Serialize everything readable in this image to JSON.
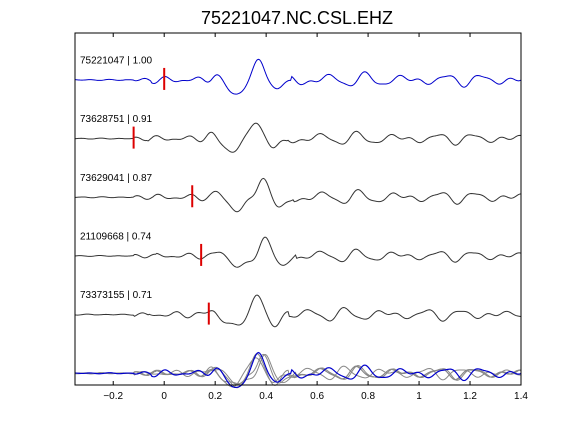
{
  "chart_data": {
    "type": "line",
    "title": "75221047.NC.CSL.EHZ",
    "xlabel": "",
    "ylabel": "",
    "xlim": [
      -0.35,
      1.4
    ],
    "ylim": [
      0,
      6
    ],
    "x_ticks": [
      {
        "value": -0.2,
        "label": "−0.2"
      },
      {
        "value": 0,
        "label": "0"
      },
      {
        "value": 0.2,
        "label": "0.2"
      },
      {
        "value": 0.4,
        "label": "0.4"
      },
      {
        "value": 0.6,
        "label": "0.6"
      },
      {
        "value": 0.8,
        "label": "0.8"
      },
      {
        "value": 1,
        "label": "1"
      },
      {
        "value": 1.2,
        "label": "1.2"
      },
      {
        "value": 1.4,
        "label": "1.4"
      }
    ],
    "grid": false,
    "series": [
      {
        "label": "75221047 | 1.00",
        "pick_time": 0.0,
        "color": "#0000cc",
        "baseline": 5.2,
        "shift": 0.0,
        "amp": 1.0
      },
      {
        "label": "73628751 | 0.91",
        "pick_time": -0.12,
        "color": "#333333",
        "baseline": 4.2,
        "shift": -0.015,
        "amp": 0.9
      },
      {
        "label": "73629041 | 0.87",
        "pick_time": 0.11,
        "color": "#333333",
        "baseline": 3.2,
        "shift": 0.01,
        "amp": 0.95
      },
      {
        "label": "21109668 | 0.74",
        "pick_time": 0.145,
        "color": "#333333",
        "baseline": 2.2,
        "shift": 0.02,
        "amp": 0.85
      },
      {
        "label": "73373155 | 0.71",
        "pick_time": 0.175,
        "color": "#333333",
        "baseline": 1.2,
        "shift": -0.01,
        "amp": 0.9
      }
    ],
    "stack": {
      "baseline": 0.2,
      "primary_color": "#0000cc",
      "others_color": "#888888"
    },
    "pick_color": "#dd0000"
  }
}
